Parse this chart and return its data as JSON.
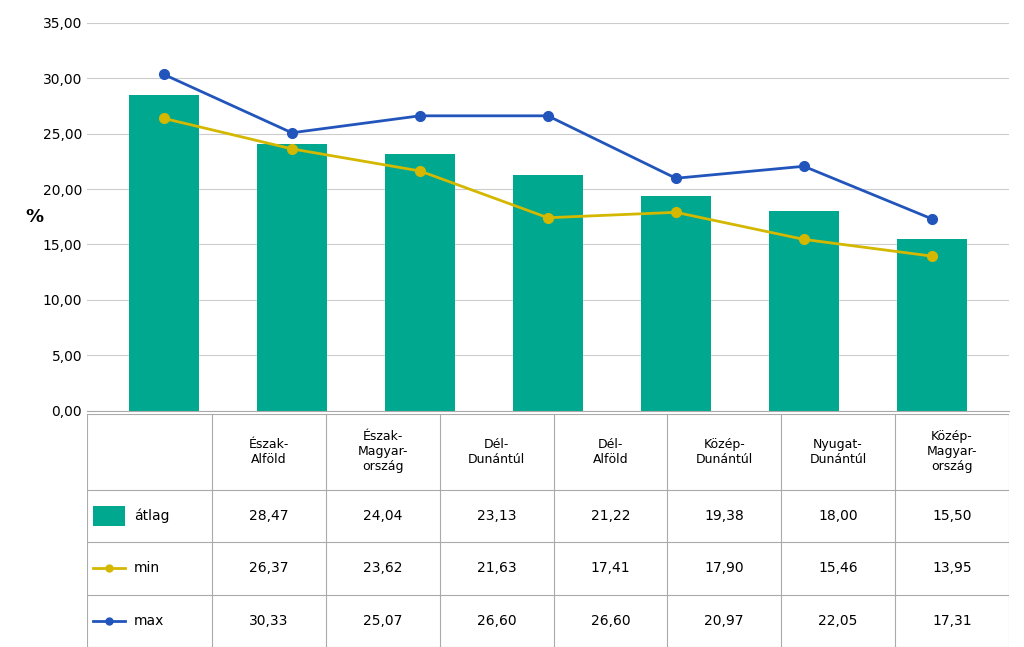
{
  "categories": [
    "Észak-\nAlföld",
    "Észak-\nMagyar-\nország",
    "Dél-\nDunántúl",
    "Dél-\nAlföld",
    "Közép-\nDunántúl",
    "Nyugat-\nDunántúl",
    "Közép-\nMagyar-\nország"
  ],
  "avg": [
    28.47,
    24.04,
    23.13,
    21.22,
    19.38,
    18.0,
    15.5
  ],
  "min_vals": [
    26.37,
    23.62,
    21.63,
    17.41,
    17.9,
    15.46,
    13.95
  ],
  "max_vals": [
    30.33,
    25.07,
    26.6,
    26.6,
    20.97,
    22.05,
    17.31
  ],
  "bar_color": "#00a88f",
  "min_color": "#d4b800",
  "max_color": "#2255bb",
  "ylabel": "%",
  "ylim": [
    0,
    35
  ],
  "yticks": [
    0,
    5,
    10,
    15,
    20,
    25,
    30,
    35
  ],
  "background_color": "#ffffff",
  "grid_color": "#cccccc",
  "table_values_avg": [
    "28,47",
    "24,04",
    "23,13",
    "21,22",
    "19,38",
    "18,00",
    "15,50"
  ],
  "table_values_min": [
    "26,37",
    "23,62",
    "21,63",
    "17,41",
    "17,90",
    "15,46",
    "13,95"
  ],
  "table_values_max": [
    "30,33",
    "25,07",
    "26,60",
    "26,60",
    "20,97",
    "22,05",
    "17,31"
  ],
  "legend_labels": [
    "átlag",
    "min",
    "max"
  ],
  "cat_labels": [
    "Észak-\nAlföld",
    "Észak-\nMagyar-\nország",
    "Dél-\nDunántúl",
    "Dél-\nAlföld",
    "Közép-\nDunántúl",
    "Nyugat-\nDunántúl",
    "Közép-\nMagyar-\nország"
  ]
}
